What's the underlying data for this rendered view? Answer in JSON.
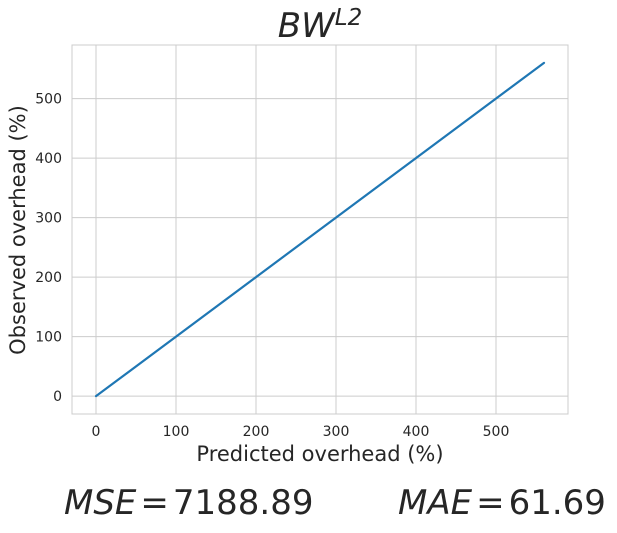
{
  "chart_data": {
    "type": "line",
    "title_base": "BW",
    "title_superscript": "L2",
    "xlabel": "Predicted overhead (%)",
    "ylabel": "Observed overhead (%)",
    "xlim": [
      -30,
      590
    ],
    "ylim": [
      -30,
      590
    ],
    "xticks": [
      0,
      100,
      200,
      300,
      400,
      500
    ],
    "yticks": [
      0,
      100,
      200,
      300,
      400,
      500
    ],
    "grid": true,
    "series": [
      {
        "color": "#1f77b4",
        "x": [
          0,
          560
        ],
        "y": [
          0,
          560
        ]
      }
    ]
  },
  "metrics": {
    "mse_name": "MSE",
    "mse_equals": "=",
    "mse_value": "7188.89",
    "mae_name": "MAE",
    "mae_equals": "=",
    "mae_value": "61.69"
  }
}
